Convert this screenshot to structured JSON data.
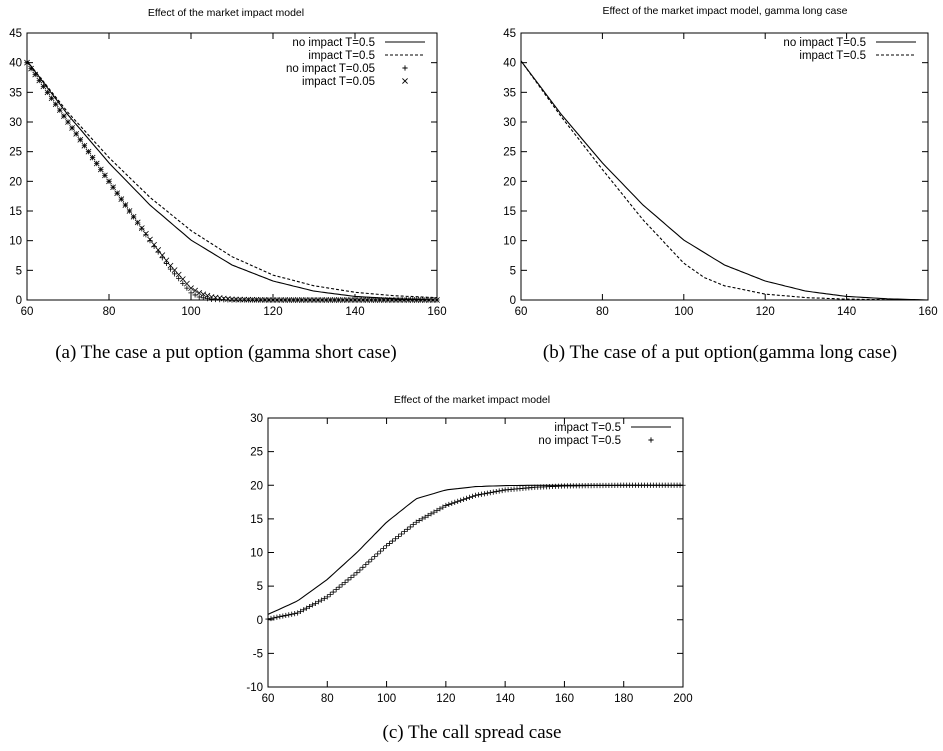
{
  "chart_data": [
    {
      "type": "line",
      "title": "Effect of the market impact model",
      "caption": "(a) The case a put option (gamma short case)",
      "xlim": [
        60,
        160
      ],
      "ylim": [
        0,
        45
      ],
      "xticks": [
        "60",
        "80",
        "100",
        "120",
        "140",
        "160"
      ],
      "yticks": [
        "0",
        "5",
        "10",
        "15",
        "20",
        "25",
        "30",
        "35",
        "40",
        "45"
      ],
      "grid": false,
      "legend_position": "top-right",
      "series": [
        {
          "name": "no impact T=0.5",
          "style": "solid",
          "x": [
            60,
            70,
            80,
            90,
            100,
            110,
            120,
            130,
            140,
            150,
            160
          ],
          "y": [
            40.3,
            31.2,
            23.1,
            16.0,
            10.1,
            5.9,
            3.2,
            1.5,
            0.6,
            0.2,
            0.0
          ]
        },
        {
          "name": "impact T=0.5",
          "style": "dashed",
          "x": [
            60,
            70,
            80,
            90,
            100,
            110,
            120,
            130,
            140,
            150,
            160
          ],
          "y": [
            40.3,
            31.6,
            24.0,
            17.3,
            11.7,
            7.3,
            4.2,
            2.4,
            1.3,
            0.7,
            0.4
          ]
        },
        {
          "name": "no impact T=0.05",
          "style": "plus",
          "x": [
            60,
            65,
            70,
            75,
            80,
            85,
            90,
            95,
            100,
            102,
            105,
            110,
            120,
            130,
            140,
            150,
            160
          ],
          "y": [
            40.0,
            35.0,
            30.0,
            25.0,
            20.0,
            15.0,
            10.0,
            5.2,
            1.2,
            0.5,
            0.1,
            0.0,
            0.0,
            0.0,
            0.0,
            0.0,
            0.0
          ]
        },
        {
          "name": "impact T=0.05",
          "style": "cross",
          "x": [
            60,
            65,
            70,
            75,
            80,
            85,
            90,
            95,
            100,
            102,
            105,
            110,
            120,
            130,
            140,
            150,
            160
          ],
          "y": [
            40.0,
            35.0,
            30.0,
            25.0,
            20.0,
            15.0,
            10.2,
            5.8,
            2.0,
            1.2,
            0.5,
            0.1,
            0.0,
            0.0,
            0.0,
            0.0,
            0.0
          ]
        }
      ]
    },
    {
      "type": "line",
      "title": "Effect of the market impact model, gamma long case",
      "caption": "(b) The case of a put option(gamma long case)",
      "xlim": [
        60,
        160
      ],
      "ylim": [
        0,
        45
      ],
      "xticks": [
        "60",
        "80",
        "100",
        "120",
        "140",
        "160"
      ],
      "yticks": [
        "0",
        "5",
        "10",
        "15",
        "20",
        "25",
        "30",
        "35",
        "40",
        "45"
      ],
      "grid": false,
      "legend_position": "top-right",
      "series": [
        {
          "name": "no impact T=0.5",
          "style": "solid",
          "x": [
            60,
            70,
            80,
            90,
            100,
            110,
            120,
            130,
            140,
            150,
            160
          ],
          "y": [
            40.3,
            31.2,
            23.1,
            16.0,
            10.1,
            5.9,
            3.2,
            1.5,
            0.6,
            0.2,
            0.0
          ]
        },
        {
          "name": "impact T=0.5",
          "style": "dashed",
          "x": [
            60,
            70,
            80,
            90,
            100,
            105,
            110,
            120,
            130,
            140,
            150,
            160
          ],
          "y": [
            40.3,
            30.8,
            22.0,
            13.5,
            6.2,
            3.8,
            2.4,
            1.0,
            0.4,
            0.15,
            0.05,
            0.0
          ]
        }
      ]
    },
    {
      "type": "line",
      "title": "Effect of the market impact model",
      "caption": "(c) The call spread case",
      "xlim": [
        60,
        200
      ],
      "ylim": [
        -10,
        30
      ],
      "xticks": [
        "60",
        "80",
        "100",
        "120",
        "140",
        "160",
        "180",
        "200"
      ],
      "yticks": [
        "-10",
        "-5",
        "0",
        "5",
        "10",
        "15",
        "20",
        "25",
        "30"
      ],
      "grid": false,
      "legend_position": "top-right",
      "series": [
        {
          "name": "impact T=0.5",
          "style": "solid",
          "x": [
            60,
            70,
            80,
            90,
            100,
            110,
            120,
            130,
            140,
            150,
            160,
            180,
            200
          ],
          "y": [
            0.8,
            2.8,
            6.0,
            10.0,
            14.5,
            18.0,
            19.3,
            19.8,
            19.95,
            20.0,
            20.0,
            20.0,
            20.0
          ]
        },
        {
          "name": "no impact T=0.5",
          "style": "plus",
          "x": [
            60,
            70,
            80,
            90,
            100,
            110,
            120,
            130,
            140,
            150,
            160,
            180,
            200
          ],
          "y": [
            0.1,
            1.0,
            3.4,
            7.0,
            11.0,
            14.5,
            17.0,
            18.5,
            19.3,
            19.7,
            19.9,
            20.0,
            20.0
          ]
        }
      ]
    }
  ]
}
